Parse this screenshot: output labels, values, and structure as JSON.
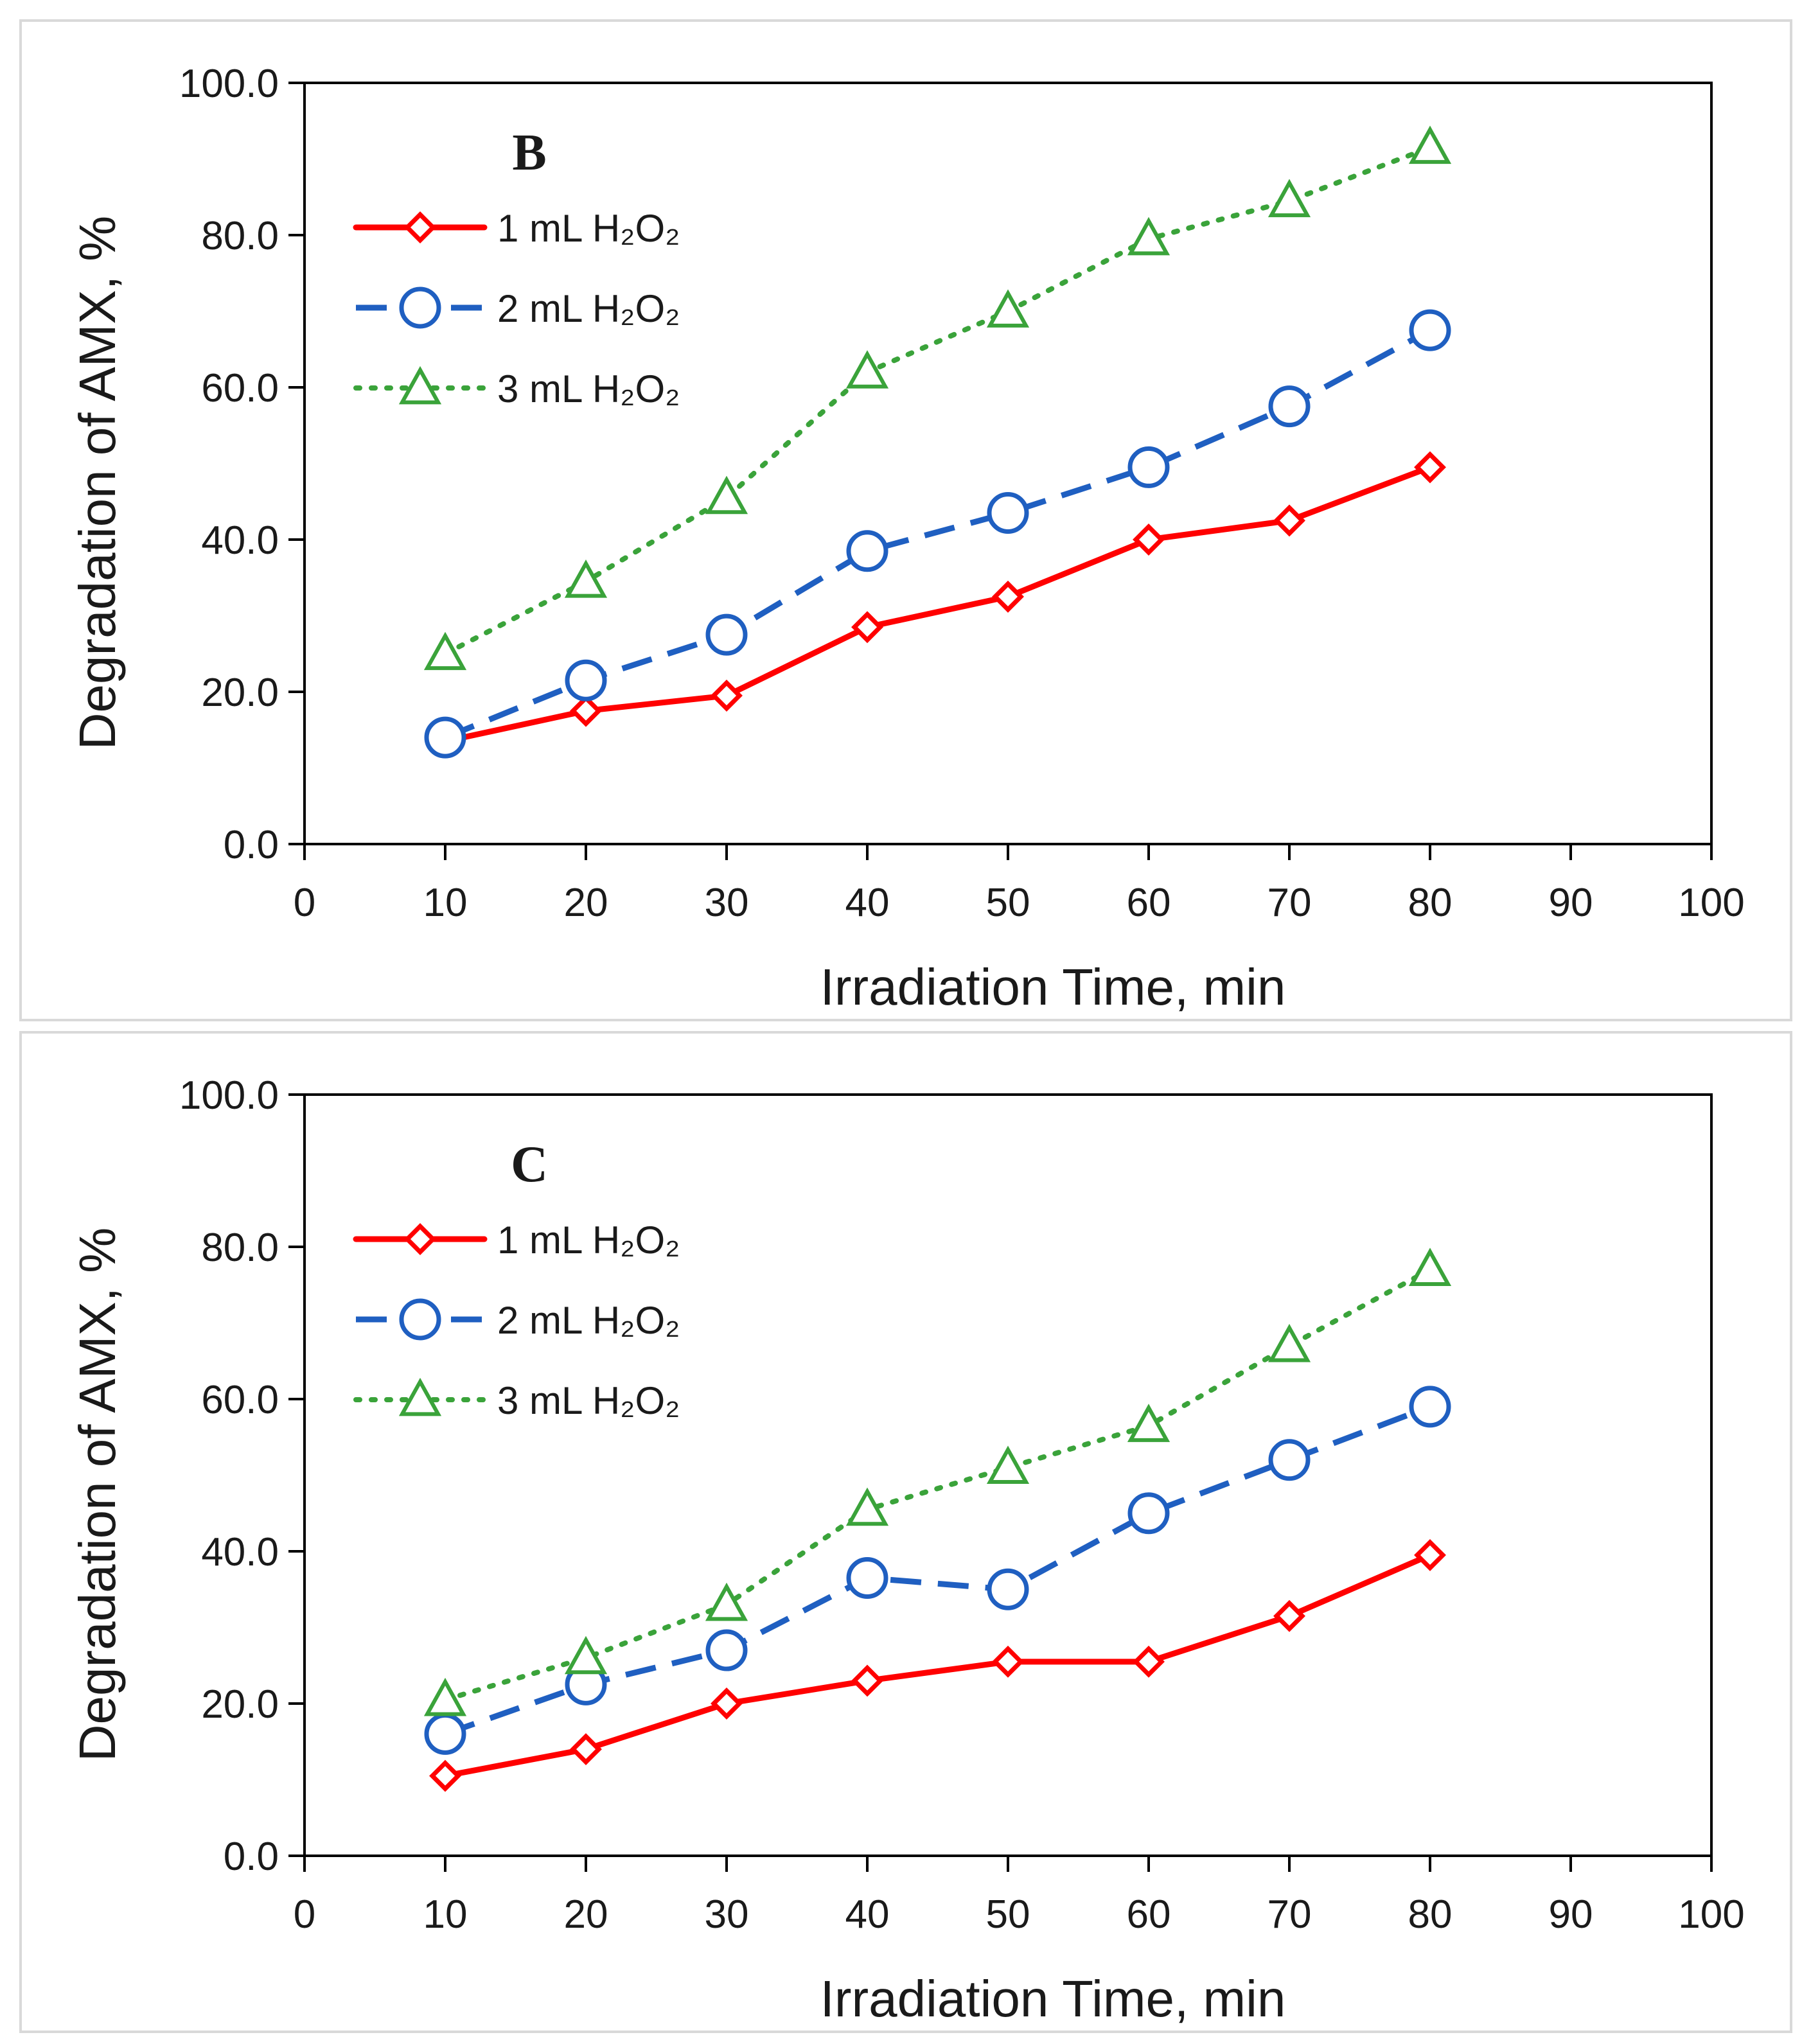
{
  "chart_data": [
    {
      "type": "line",
      "panel_label": "B",
      "xlabel": "Irradiation Time, min",
      "ylabel": "Degradation of AMX, %",
      "xlim": [
        0,
        100
      ],
      "ylim": [
        0,
        100
      ],
      "x_ticks": [
        "0",
        "10",
        "20",
        "30",
        "40",
        "50",
        "60",
        "70",
        "80",
        "90",
        "100"
      ],
      "y_ticks": [
        "0.0",
        "20.0",
        "40.0",
        "60.0",
        "80.0",
        "100.0"
      ],
      "x": [
        10,
        20,
        30,
        40,
        50,
        60,
        70,
        80
      ],
      "legend_position": "top-left",
      "series": [
        {
          "name": "1 mL H₂O₂",
          "color": "#ff0000",
          "marker": "diamond",
          "style": "solid",
          "values": [
            13.5,
            17.5,
            19.5,
            28.5,
            32.5,
            40.0,
            42.5,
            49.5
          ]
        },
        {
          "name": "2 mL H₂O₂",
          "color": "#1f5fc1",
          "marker": "circle",
          "style": "dashed",
          "values": [
            14.0,
            21.5,
            27.5,
            38.5,
            43.5,
            49.5,
            57.5,
            67.5
          ]
        },
        {
          "name": "3 mL H₂O₂",
          "color": "#3aa33a",
          "marker": "triangle",
          "style": "dotted",
          "values": [
            25.0,
            34.5,
            45.5,
            62.0,
            70.0,
            79.5,
            84.5,
            91.5
          ]
        }
      ]
    },
    {
      "type": "line",
      "panel_label": "C",
      "xlabel": "Irradiation Time, min",
      "ylabel": "Degradation of AMX, %",
      "xlim": [
        0,
        100
      ],
      "ylim": [
        0,
        100
      ],
      "x_ticks": [
        "0",
        "10",
        "20",
        "30",
        "40",
        "50",
        "60",
        "70",
        "80",
        "90",
        "100"
      ],
      "y_ticks": [
        "0.0",
        "20.0",
        "40.0",
        "60.0",
        "80.0",
        "100.0"
      ],
      "x": [
        10,
        20,
        30,
        40,
        50,
        60,
        70,
        80
      ],
      "legend_position": "top-left",
      "series": [
        {
          "name": "1 mL H₂O₂",
          "color": "#ff0000",
          "marker": "diamond",
          "style": "solid",
          "values": [
            10.5,
            14.0,
            20.0,
            23.0,
            25.5,
            25.5,
            31.5,
            39.5
          ]
        },
        {
          "name": "2 mL H₂O₂",
          "color": "#1f5fc1",
          "marker": "circle",
          "style": "dashed",
          "values": [
            16.0,
            22.5,
            27.0,
            36.5,
            35.0,
            45.0,
            52.0,
            59.0
          ]
        },
        {
          "name": "3 mL H₂O₂",
          "color": "#3aa33a",
          "marker": "triangle",
          "style": "dotted",
          "values": [
            20.5,
            26.0,
            33.0,
            45.5,
            51.0,
            56.5,
            67.0,
            77.0
          ]
        }
      ]
    }
  ]
}
